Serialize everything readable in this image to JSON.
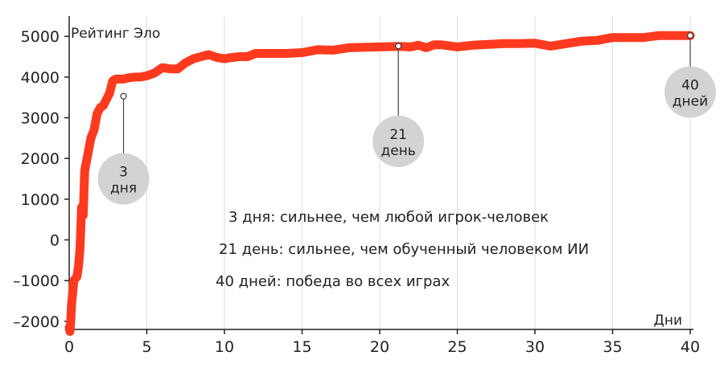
{
  "chart_data": {
    "type": "line",
    "ylabel": "Рейтинг Эло",
    "xlabel": "Дни",
    "xlim": [
      0,
      40
    ],
    "ylim": [
      -2200,
      5300
    ],
    "xticks": [
      0,
      5,
      10,
      15,
      20,
      25,
      30,
      35,
      40
    ],
    "yticks": [
      -2000,
      -1000,
      0,
      1000,
      2000,
      3000,
      4000,
      5000
    ],
    "ytick_labels": [
      "–2000",
      "–1000",
      "0",
      "1000",
      "2000",
      "3000",
      "4000",
      "5000"
    ],
    "grid": "vertical",
    "line_color": "#ff3a1f",
    "series": [
      {
        "x": [
          0,
          0.05,
          0.1,
          0.15,
          0.3,
          0.5,
          0.6,
          0.7,
          0.8,
          0.9,
          1.0,
          1.1,
          1.25,
          1.4,
          1.6,
          1.8,
          2.0,
          2.2,
          2.4,
          2.6,
          2.8,
          3.0,
          3.2,
          3.5,
          3.8,
          4.2,
          4.6,
          5.0,
          5.5,
          6.0,
          6.5,
          7.0,
          7.5,
          8.0,
          8.5,
          9.0,
          9.5,
          10.0,
          10.5,
          11.0,
          11.5,
          12.0,
          13.0,
          14.0,
          15.0,
          16.0,
          17.0,
          18.0,
          19.0,
          20.0,
          21.0,
          21.5,
          22.0,
          22.5,
          23.0,
          23.5,
          24.0,
          25.0,
          26.0,
          27.0,
          28.0,
          29.0,
          30.0,
          31.0,
          32.0,
          33.0,
          34.0,
          35.0,
          36.0,
          37.0,
          38.0,
          39.0,
          40.0
        ],
        "y": [
          -2150,
          -2250,
          -2000,
          -1600,
          -1000,
          -900,
          -650,
          -200,
          800,
          600,
          1700,
          1900,
          2200,
          2500,
          2700,
          3100,
          3250,
          3300,
          3450,
          3600,
          3900,
          3950,
          3950,
          3950,
          3980,
          4000,
          4000,
          4030,
          4100,
          4230,
          4200,
          4200,
          4350,
          4450,
          4500,
          4550,
          4480,
          4450,
          4480,
          4500,
          4500,
          4580,
          4580,
          4580,
          4600,
          4670,
          4660,
          4720,
          4730,
          4740,
          4750,
          4750,
          4740,
          4780,
          4720,
          4790,
          4790,
          4740,
          4780,
          4800,
          4820,
          4820,
          4830,
          4760,
          4820,
          4880,
          4900,
          4970,
          4970,
          4970,
          5020,
          5020,
          5020
        ]
      }
    ],
    "markers": [
      {
        "x": 3.5,
        "y": 3530,
        "label_line1": "3",
        "label_line2": "дня",
        "bubble_y": 1500
      },
      {
        "x": 21.2,
        "y": 4760,
        "label_line1": "21",
        "label_line2": "день",
        "bubble_y": 2420
      },
      {
        "x": 40.0,
        "y": 5020,
        "label_line1": "40",
        "label_line2": "дней",
        "bubble_y": 3630
      }
    ],
    "annotations": [
      "3 дня: сильнее, чем любой игрок-человек",
      "21 день: сильнее, чем обученный человеком ИИ",
      "40 дней: победа во всех играх"
    ]
  }
}
